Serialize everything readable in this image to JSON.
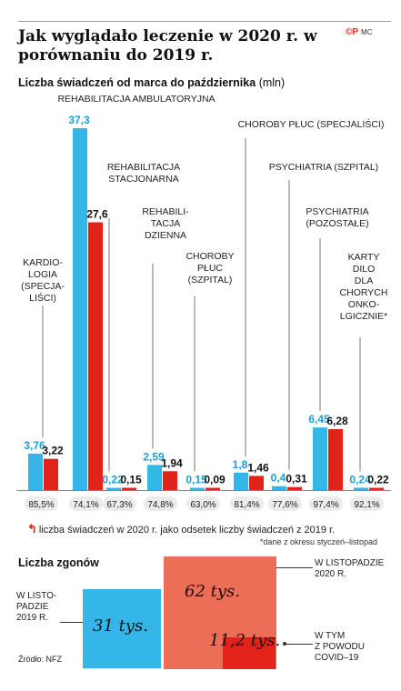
{
  "header": {
    "title": "Jak wyglądało leczenie w 2020 r. w porównaniu do 2019 r.",
    "logo_mark": "©P",
    "logo_initials": "MC"
  },
  "chart_data": [
    {
      "type": "bar",
      "title": "Liczba świadczeń od marca do października",
      "unit": "(mln)",
      "categories": [
        "KARDIO-\nLOGIA\n(SPECJA-\nLIŚCI)",
        "REHABILITACJA AMBULATORYJNA",
        "REHABILITACJA\nSTACJONARNA",
        "REHABILI-\nTACJA\nDZIENNA",
        "CHOROBY\nPŁUC\n(SZPITAL)",
        "CHOROBY PŁUC (SPECJALIŚCI)",
        "PSYCHIATRIA (SZPITAL)",
        "PSYCHIATRIA\n(POZOSTAŁE)",
        "KARTY\nDILO\nDLA\nCHORYCH\nONKO-\nLGICZNIE*"
      ],
      "series": [
        {
          "name": "2019",
          "color": "#35b6e8",
          "values": [
            3.76,
            37.3,
            0.22,
            2.59,
            0.15,
            1.8,
            0.4,
            6.45,
            0.24
          ],
          "labels": [
            "3,76",
            "37,3",
            "0,22",
            "2,59",
            "0,15",
            "1,8",
            "0,4",
            "6,45",
            "0,24"
          ]
        },
        {
          "name": "2020",
          "color": "#e2231a",
          "values": [
            3.22,
            27.6,
            0.15,
            1.94,
            0.09,
            1.46,
            0.31,
            6.28,
            0.22
          ],
          "labels": [
            "3,22",
            "27,6",
            "0,15",
            "1,94",
            "0,09",
            "1,46",
            "0,31",
            "6,28",
            "0,22"
          ]
        }
      ],
      "percentages": [
        "85,5%",
        "74,1%",
        "67,3%",
        "74,8%",
        "63,0%",
        "81,4%",
        "77,6%",
        "97,4%",
        "92,1%"
      ],
      "percent_note": "liczba świadczeń w 2020 r. jako odsetek liczby świadczeń z 2019 r.",
      "footnote": "*dane z okresu styczeń–listopad",
      "ylim": [
        0,
        37.3
      ]
    },
    {
      "type": "area",
      "title": "Liczba zgonów",
      "items": [
        {
          "label": "W LISTO-\nPADZIE\n2019 R.",
          "value": 31,
          "display": "31 tys.",
          "color": "#35b6e8"
        },
        {
          "label": "W LISTOPADZIE\n2020 R.",
          "value": 62,
          "display": "62 tys.",
          "color": "#ec6e56"
        },
        {
          "label": "W TYM\nZ POWODU\nCOVID–19",
          "value": 11.2,
          "display": "11,2 tys.",
          "color": "#e2231a"
        }
      ]
    }
  ],
  "source": "Źródło: NFZ"
}
